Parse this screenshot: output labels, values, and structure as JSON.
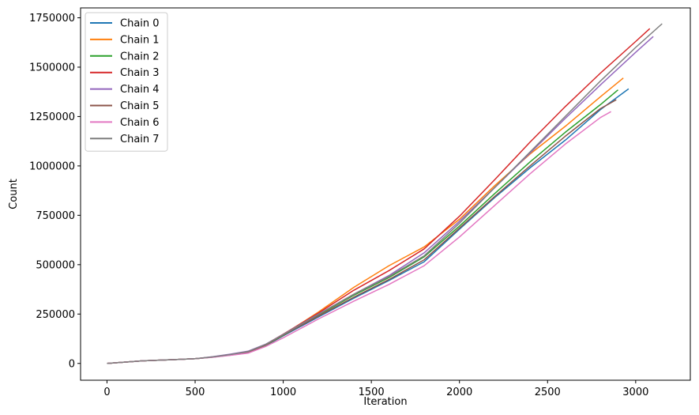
{
  "chart_data": {
    "type": "line",
    "xlabel": "Iteration",
    "ylabel": "Count",
    "xlim": [
      -150,
      3310
    ],
    "ylim": [
      -85000,
      1800000
    ],
    "xticks": [
      0,
      500,
      1000,
      1500,
      2000,
      2500,
      3000
    ],
    "yticks": [
      0,
      250000,
      500000,
      750000,
      1000000,
      1250000,
      1500000,
      1750000
    ],
    "grid": false,
    "legend_position": "top-left",
    "series": [
      {
        "name": "Chain 0",
        "color": "#1f77b4",
        "x": [
          0,
          200,
          400,
          500,
          600,
          700,
          800,
          900,
          1000,
          1200,
          1400,
          1600,
          1800,
          2000,
          2200,
          2400,
          2600,
          2800,
          2960
        ],
        "y": [
          0,
          13000,
          20000,
          24000,
          32000,
          42000,
          54000,
          90000,
          140000,
          235000,
          330000,
          420000,
          515000,
          680000,
          840000,
          990000,
          1130000,
          1285000,
          1390000
        ]
      },
      {
        "name": "Chain 1",
        "color": "#ff7f0e",
        "x": [
          0,
          200,
          400,
          500,
          600,
          700,
          800,
          900,
          1000,
          1200,
          1400,
          1600,
          1800,
          2000,
          2200,
          2400,
          2600,
          2800,
          2930
        ],
        "y": [
          0,
          13000,
          20000,
          24000,
          32000,
          44000,
          58000,
          95000,
          145000,
          260000,
          385000,
          495000,
          590000,
          730000,
          900000,
          1060000,
          1200000,
          1350000,
          1445000
        ]
      },
      {
        "name": "Chain 2",
        "color": "#2ca02c",
        "x": [
          0,
          200,
          400,
          500,
          600,
          700,
          800,
          900,
          1000,
          1200,
          1400,
          1600,
          1800,
          2000,
          2200,
          2400,
          2600,
          2800,
          2900
        ],
        "y": [
          0,
          13000,
          20000,
          24000,
          32000,
          42000,
          55000,
          92000,
          142000,
          245000,
          345000,
          435000,
          540000,
          695000,
          860000,
          1020000,
          1170000,
          1310000,
          1385000
        ]
      },
      {
        "name": "Chain 3",
        "color": "#d62728",
        "x": [
          0,
          200,
          400,
          500,
          600,
          700,
          800,
          900,
          1000,
          1200,
          1400,
          1600,
          1800,
          2000,
          2200,
          2400,
          2600,
          2800,
          3000,
          3080
        ],
        "y": [
          0,
          13000,
          20000,
          24000,
          33000,
          45000,
          58000,
          96000,
          148000,
          255000,
          370000,
          470000,
          580000,
          745000,
          930000,
          1120000,
          1300000,
          1470000,
          1630000,
          1695000
        ]
      },
      {
        "name": "Chain 4",
        "color": "#9467bd",
        "x": [
          0,
          200,
          400,
          500,
          600,
          700,
          800,
          900,
          1000,
          1200,
          1400,
          1600,
          1800,
          2000,
          2200,
          2400,
          2600,
          2800,
          3000,
          3100
        ],
        "y": [
          0,
          13000,
          20000,
          24000,
          34000,
          47000,
          62000,
          97000,
          147000,
          250000,
          350000,
          445000,
          560000,
          720000,
          890000,
          1065000,
          1240000,
          1410000,
          1575000,
          1655000
        ]
      },
      {
        "name": "Chain 5",
        "color": "#8c564b",
        "x": [
          0,
          200,
          400,
          500,
          600,
          700,
          800,
          900,
          1000,
          1200,
          1400,
          1600,
          1800,
          2000,
          2200,
          2400,
          2600,
          2800,
          2890
        ],
        "y": [
          0,
          13000,
          20000,
          24000,
          32000,
          43000,
          56000,
          93000,
          143000,
          240000,
          335000,
          425000,
          525000,
          685000,
          845000,
          1000000,
          1150000,
          1290000,
          1335000
        ]
      },
      {
        "name": "Chain 6",
        "color": "#e377c2",
        "x": [
          0,
          200,
          400,
          500,
          600,
          700,
          800,
          900,
          1000,
          1200,
          1400,
          1600,
          1800,
          2000,
          2200,
          2400,
          2600,
          2800,
          2860
        ],
        "y": [
          0,
          13000,
          20000,
          24000,
          31000,
          41000,
          52000,
          86000,
          130000,
          225000,
          315000,
          400000,
          495000,
          640000,
          800000,
          960000,
          1110000,
          1245000,
          1275000
        ]
      },
      {
        "name": "Chain 7",
        "color": "#7f7f7f",
        "x": [
          0,
          200,
          400,
          500,
          600,
          700,
          800,
          900,
          1000,
          1200,
          1400,
          1600,
          1800,
          2000,
          2200,
          2400,
          2600,
          2800,
          3000,
          3150
        ],
        "y": [
          0,
          13000,
          20000,
          24000,
          33000,
          45000,
          60000,
          96000,
          146000,
          248000,
          350000,
          440000,
          545000,
          710000,
          890000,
          1070000,
          1250000,
          1430000,
          1600000,
          1720000
        ]
      }
    ]
  }
}
